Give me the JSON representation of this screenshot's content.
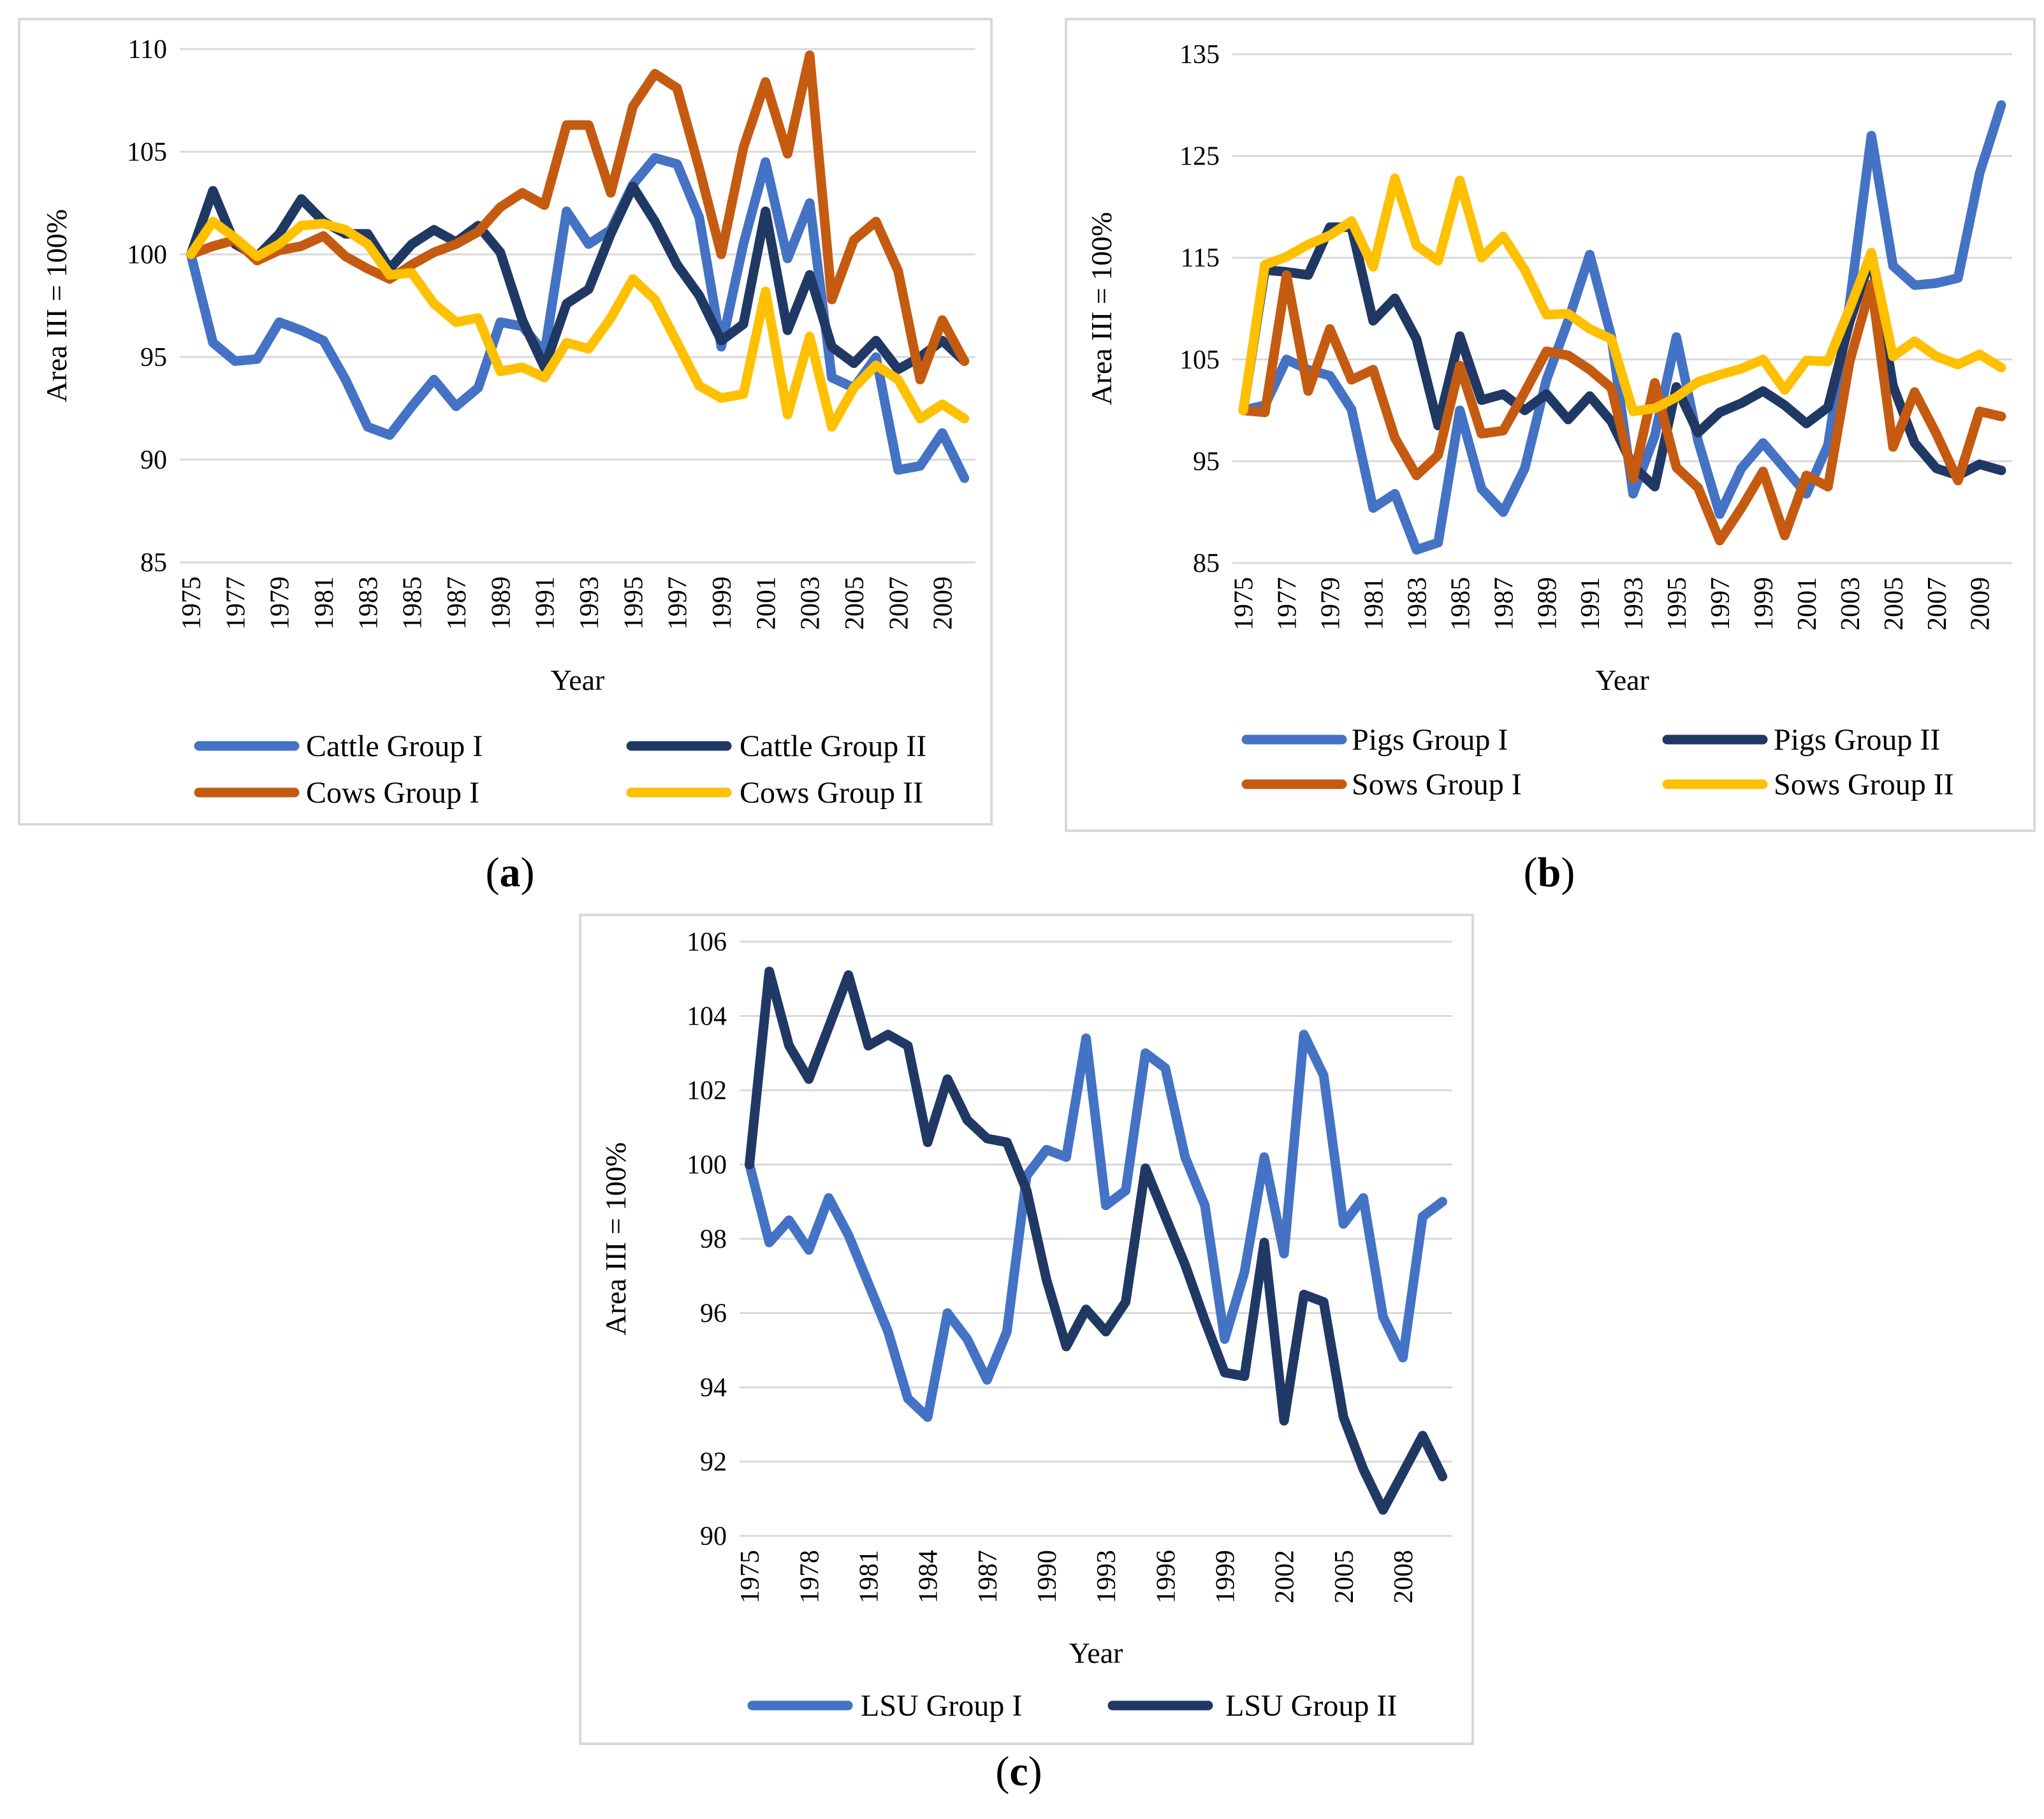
{
  "chart_data": [
    {
      "type": "line",
      "panel_label": "a",
      "xlabel": "Year",
      "ylabel": "Area III = 100%",
      "ylim": [
        85,
        110
      ],
      "yticks": [
        85,
        90,
        95,
        100,
        105,
        110
      ],
      "x": [
        1975,
        1976,
        1977,
        1978,
        1979,
        1980,
        1981,
        1982,
        1983,
        1984,
        1985,
        1986,
        1987,
        1988,
        1989,
        1990,
        1991,
        1992,
        1993,
        1994,
        1995,
        1996,
        1997,
        1998,
        1999,
        2000,
        2001,
        2002,
        2003,
        2004,
        2005,
        2006,
        2007,
        2008,
        2009,
        2010
      ],
      "xticks": [
        "1975",
        "1977",
        "1979",
        "1981",
        "1983",
        "1985",
        "1987",
        "1989",
        "1991",
        "1993",
        "1995",
        "1997",
        "1999",
        "2001",
        "2003",
        "2005",
        "2007",
        "2009"
      ],
      "grid": true,
      "legend_position": "bottom",
      "series": [
        {
          "name": "Cattle Group I",
          "color": "#4472C4",
          "values": [
            100,
            95.7,
            94.8,
            94.9,
            96.7,
            96.3,
            95.8,
            93.9,
            91.6,
            91.2,
            92.6,
            93.9,
            92.6,
            93.5,
            96.7,
            96.5,
            95.2,
            102.1,
            100.5,
            101.2,
            103.4,
            104.7,
            104.4,
            101.8,
            95.5,
            100.5,
            104.5,
            99.8,
            102.5,
            94,
            93.5,
            95,
            89.5,
            89.7,
            91.3,
            89.1
          ]
        },
        {
          "name": "Cattle Group II",
          "color": "#203864",
          "values": [
            100,
            103.1,
            100.5,
            99.9,
            101,
            102.7,
            101.6,
            101,
            101,
            99.3,
            100.5,
            101.2,
            100.6,
            101.4,
            100.1,
            96.8,
            94.5,
            97.6,
            98.3,
            101,
            103.3,
            101.6,
            99.5,
            98,
            95.8,
            96.6,
            102.1,
            96.3,
            99,
            95.5,
            94.7,
            95.8,
            94.4,
            95,
            95.8,
            94.8
          ]
        },
        {
          "name": "Cows Group I",
          "color": "#C55A11",
          "values": [
            100,
            100.4,
            100.7,
            99.7,
            100.2,
            100.4,
            100.9,
            99.9,
            99.3,
            98.8,
            99.5,
            100.1,
            100.5,
            101.1,
            102.3,
            103,
            102.4,
            106.3,
            106.3,
            103,
            107.2,
            108.8,
            108.1,
            104.2,
            100,
            105.2,
            108.4,
            104.9,
            109.7,
            97.8,
            100.7,
            101.6,
            99.2,
            93.9,
            96.8,
            94.8
          ]
        },
        {
          "name": "Cows Group II",
          "color": "#FFC000",
          "values": [
            100,
            101.6,
            100.8,
            99.9,
            100.5,
            101.4,
            101.5,
            101.2,
            100.5,
            99,
            99.1,
            97.6,
            96.7,
            96.9,
            94.3,
            94.5,
            94,
            95.7,
            95.4,
            96.9,
            98.8,
            97.8,
            95.7,
            93.6,
            93,
            93.2,
            98.2,
            92.2,
            96,
            91.6,
            93.5,
            94.6,
            93.9,
            92,
            92.7,
            92
          ]
        }
      ]
    },
    {
      "type": "line",
      "panel_label": "b",
      "xlabel": "Year",
      "ylabel": "Area III = 100%",
      "ylim": [
        85,
        135
      ],
      "yticks": [
        85,
        95,
        105,
        115,
        125,
        135
      ],
      "x": [
        1975,
        1976,
        1977,
        1978,
        1979,
        1980,
        1981,
        1982,
        1983,
        1984,
        1985,
        1986,
        1987,
        1988,
        1989,
        1990,
        1991,
        1992,
        1993,
        1994,
        1995,
        1996,
        1997,
        1998,
        1999,
        2000,
        2001,
        2002,
        2003,
        2004,
        2005,
        2006,
        2007,
        2008,
        2009,
        2010
      ],
      "xticks": [
        "1975",
        "1977",
        "1979",
        "1981",
        "1983",
        "1985",
        "1987",
        "1989",
        "1991",
        "1993",
        "1995",
        "1997",
        "1999",
        "2001",
        "2003",
        "2005",
        "2007",
        "2009"
      ],
      "grid": true,
      "legend_position": "bottom",
      "series": [
        {
          "name": "Pigs Group I",
          "color": "#4472C4",
          "values": [
            100,
            100.5,
            105,
            104,
            103.4,
            100.1,
            90.4,
            91.8,
            86.3,
            87,
            100,
            92.3,
            90,
            94.3,
            103,
            108.8,
            115.3,
            107.2,
            91.8,
            97.5,
            107.2,
            97,
            89.8,
            94.3,
            96.8,
            94.3,
            91.8,
            96.6,
            110.5,
            127,
            114.2,
            112.3,
            112.5,
            113,
            123.3,
            130
          ]
        },
        {
          "name": "Pigs Group II",
          "color": "#203864",
          "values": [
            100,
            113.8,
            113.6,
            113.3,
            118,
            118,
            108.8,
            111,
            107,
            98.5,
            107.3,
            101,
            101.6,
            100,
            101.6,
            99.1,
            101.4,
            98.9,
            94.5,
            92.5,
            102.3,
            97.8,
            99.8,
            100.7,
            101.9,
            100.5,
            98.7,
            100.3,
            108.7,
            115.2,
            102.4,
            96.8,
            94.3,
            93.6,
            94.7,
            94.1
          ]
        },
        {
          "name": "Sows Group I",
          "color": "#C55A11",
          "values": [
            100,
            99.8,
            113.3,
            101.9,
            108,
            103,
            104,
            97.3,
            93.6,
            95.6,
            104.4,
            97.7,
            98,
            101.8,
            105.8,
            105.4,
            104,
            102.2,
            93.3,
            102.7,
            94.4,
            92.4,
            87.2,
            90.4,
            94,
            87.7,
            93.6,
            92.5,
            104.8,
            112.4,
            96.4,
            101.8,
            97.7,
            93.1,
            99.9,
            99.4
          ]
        },
        {
          "name": "Sows Group II",
          "color": "#FFC000",
          "values": [
            100,
            114.3,
            115.1,
            116.3,
            117.2,
            118.6,
            114.1,
            122.8,
            116.2,
            114.7,
            122.6,
            115,
            117.1,
            113.8,
            109.4,
            109.5,
            108,
            107,
            99.9,
            100.2,
            101.3,
            102.8,
            103.5,
            104.1,
            105,
            102,
            104.9,
            104.8,
            110,
            115.5,
            105.3,
            106.8,
            105.3,
            104.5,
            105.5,
            104.2
          ]
        }
      ]
    },
    {
      "type": "line",
      "panel_label": "c",
      "xlabel": "Year",
      "ylabel": "Area III = 100%",
      "ylim": [
        90,
        106
      ],
      "yticks": [
        90,
        92,
        94,
        96,
        98,
        100,
        102,
        104,
        106
      ],
      "x": [
        1975,
        1976,
        1977,
        1978,
        1979,
        1980,
        1981,
        1982,
        1983,
        1984,
        1985,
        1986,
        1987,
        1988,
        1989,
        1990,
        1991,
        1992,
        1993,
        1994,
        1995,
        1996,
        1997,
        1998,
        1999,
        2000,
        2001,
        2002,
        2003,
        2004,
        2005,
        2006,
        2007,
        2008,
        2009,
        2010
      ],
      "xticks": [
        "1975",
        "1978",
        "1981",
        "1984",
        "1987",
        "1990",
        "1993",
        "1996",
        "1999",
        "2002",
        "2005",
        "2008"
      ],
      "grid": true,
      "legend_position": "bottom",
      "series": [
        {
          "name": "LSU Group I",
          "color": "#4472C4",
          "values": [
            100,
            97.9,
            98.5,
            97.7,
            99.1,
            98.1,
            96.8,
            95.5,
            93.7,
            93.2,
            96,
            95.3,
            94.2,
            95.5,
            99.7,
            100.4,
            100.2,
            103.4,
            98.9,
            99.3,
            103,
            102.6,
            100.2,
            98.9,
            95.3,
            97.1,
            100.2,
            97.6,
            103.5,
            102.4,
            98.4,
            99.1,
            95.9,
            94.8,
            98.6,
            99
          ]
        },
        {
          "name": "LSU Group II",
          "color": "#203864",
          "values": [
            100,
            105.2,
            103.2,
            102.3,
            103.7,
            105.1,
            103.2,
            103.5,
            103.2,
            100.6,
            102.3,
            101.2,
            100.7,
            100.6,
            99.3,
            96.9,
            95.1,
            96.1,
            95.5,
            96.3,
            99.9,
            98.6,
            97.3,
            95.8,
            94.4,
            94.3,
            97.9,
            93.1,
            96.5,
            96.3,
            93.2,
            91.8,
            90.7,
            91.7,
            92.7,
            91.6
          ]
        }
      ]
    }
  ]
}
